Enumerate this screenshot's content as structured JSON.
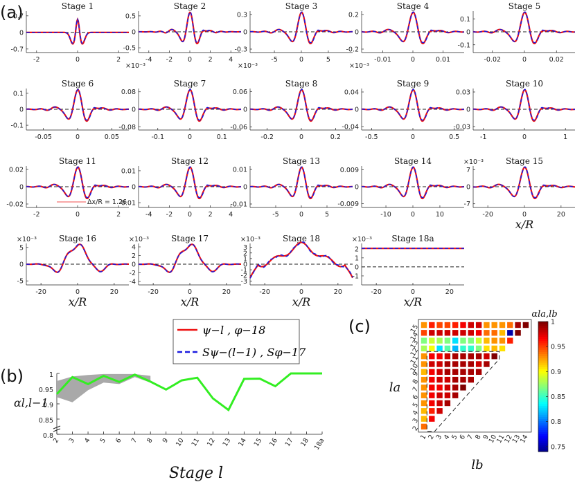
{
  "panel_labels": {
    "a": "(a)",
    "b": "(b)",
    "c": "(c)"
  },
  "colors": {
    "psi": "#ee1111",
    "spsi": "#1a1adf",
    "alpha_line": "#33ee22",
    "band": "#a9a9a9"
  },
  "legend": {
    "series1": "ψ−l , φ−18",
    "series2": "Sψ−(l−1) , Sφ−17"
  },
  "xlabel_a": "x/R",
  "annotation_stage11": "Δx/R = 1.26",
  "chart_data": [
    {
      "type": "line",
      "panel": "a",
      "series_names": [
        "ψ−l , φ−18",
        "Sψ−(l−1) , Sφ−17"
      ],
      "stages": [
        {
          "title": "Stage 1",
          "xlim": [
            -0.0025,
            0.0025
          ],
          "ylim": [
            -0.85,
            0.9
          ],
          "xticks": [
            -2,
            0,
            2
          ],
          "xtick_scale": "×10⁻³",
          "yticks": [
            "0.7",
            "0",
            "-0.7"
          ],
          "ytick_vals": [
            0.7,
            0,
            -0.7
          ],
          "shape": "spike"
        },
        {
          "title": "Stage 2",
          "xlim": [
            -0.005,
            0.005
          ],
          "ylim": [
            -0.65,
            0.65
          ],
          "xticks": [
            -4,
            -2,
            0,
            2,
            4
          ],
          "xtick_scale": "×10⁻³",
          "yticks": [
            "0.5",
            "0",
            "-0.5"
          ],
          "ytick_vals": [
            0.5,
            0,
            -0.5
          ],
          "shape": "wavelet",
          "k": 3.0
        },
        {
          "title": "Stage 3",
          "xlim": [
            -0.0095,
            0.0095
          ],
          "ylim": [
            -0.36,
            0.36
          ],
          "xticks": [
            -5,
            0,
            5
          ],
          "xtick_scale": "×10⁻³",
          "yticks": [
            "0.3",
            "0",
            "-0.3"
          ],
          "ytick_vals": [
            0.3,
            0,
            -0.3
          ],
          "shape": "wavelet",
          "k": 2.4
        },
        {
          "title": "Stage 4",
          "xlim": [
            -0.017,
            0.017
          ],
          "ylim": [
            -0.24,
            0.24
          ],
          "xticks": [
            -0.01,
            0,
            0.01
          ],
          "xtick_labels": [
            "-0.01",
            "0",
            "0.01"
          ],
          "yticks": [
            "0.2",
            "0",
            "-0.2"
          ],
          "ytick_vals": [
            0.2,
            0,
            -0.2
          ],
          "shape": "wavelet",
          "k": 2.2
        },
        {
          "title": "Stage 5",
          "xlim": [
            -0.032,
            0.032
          ],
          "ylim": [
            -0.16,
            0.16
          ],
          "xticks": [
            -0.02,
            0,
            0.02
          ],
          "xtick_labels": [
            "-0.02",
            "0",
            "0.02"
          ],
          "yticks": [
            "0.1",
            "0",
            "-0.1"
          ],
          "ytick_vals": [
            0.1,
            0,
            -0.1
          ],
          "shape": "wavelet",
          "k": 2.2
        },
        {
          "title": "Stage 6",
          "xlim": [
            -0.075,
            0.075
          ],
          "ylim": [
            -0.13,
            0.13
          ],
          "xticks": [
            -0.05,
            0,
            0.05
          ],
          "xtick_labels": [
            "-0.05",
            "0",
            "0.05"
          ],
          "yticks": [
            "0.1",
            "0",
            "-0.1"
          ],
          "ytick_vals": [
            0.1,
            0,
            -0.1
          ],
          "shape": "wavelet",
          "k": 2.4
        },
        {
          "title": "Stage 7",
          "xlim": [
            -0.16,
            0.16
          ],
          "ylim": [
            -0.095,
            0.095
          ],
          "xticks": [
            -0.1,
            0,
            0.1
          ],
          "xtick_labels": [
            "-0.1",
            "0",
            "0.1"
          ],
          "yticks": [
            "0.08",
            "0",
            "-0.08"
          ],
          "ytick_vals": [
            0.08,
            0,
            -0.08
          ],
          "shape": "wavelet",
          "k": 2.3
        },
        {
          "title": "Stage 8",
          "xlim": [
            -0.3,
            0.3
          ],
          "ylim": [
            -0.07,
            0.07
          ],
          "xticks": [
            -0.2,
            0,
            0.2
          ],
          "xtick_labels": [
            "-0.2",
            "0",
            "0.2"
          ],
          "yticks": [
            "0.06",
            "0",
            "-0.06"
          ],
          "ytick_vals": [
            0.06,
            0,
            -0.06
          ],
          "shape": "wavelet",
          "k": 2.3
        },
        {
          "title": "Stage 9",
          "xlim": [
            -0.62,
            0.62
          ],
          "ylim": [
            -0.048,
            0.048
          ],
          "xticks": [
            -0.5,
            0,
            0.5
          ],
          "xtick_labels": [
            "-0.5",
            "0",
            "0.5"
          ],
          "yticks": [
            "0.04",
            "0",
            "-0.04"
          ],
          "ytick_vals": [
            0.04,
            0,
            -0.04
          ],
          "shape": "wavelet",
          "k": 2.3
        },
        {
          "title": "Stage 10",
          "xlim": [
            -1.25,
            1.25
          ],
          "ylim": [
            -0.036,
            0.036
          ],
          "xticks": [
            -1,
            0,
            1
          ],
          "xtick_labels": [
            "-1",
            "0",
            "1"
          ],
          "yticks": [
            "0.03",
            "0",
            "-0.03"
          ],
          "ytick_vals": [
            0.03,
            0,
            -0.03
          ],
          "shape": "wavelet",
          "k": 2.3
        },
        {
          "title": "Stage 11",
          "xlim": [
            -2.5,
            2.5
          ],
          "ylim": [
            -0.024,
            0.024
          ],
          "xticks": [
            -2,
            0,
            2
          ],
          "xtick_labels": [
            "-2",
            "0",
            "2"
          ],
          "yticks": [
            "0.02",
            "0",
            "-0.02"
          ],
          "ytick_vals": [
            0.02,
            0,
            -0.02
          ],
          "shape": "wavelet",
          "k": 2.3
        },
        {
          "title": "Stage 12",
          "xlim": [
            -5,
            5
          ],
          "ylim": [
            -0.013,
            0.013
          ],
          "xticks": [
            -4,
            -2,
            0,
            2,
            4
          ],
          "xtick_labels": [
            "-4",
            "-2",
            "0",
            "2",
            "4"
          ],
          "yticks": [
            "0.01",
            "0",
            "-0.01"
          ],
          "ytick_vals": [
            0.01,
            0,
            -0.01
          ],
          "shape": "wavelet",
          "k": 2.3
        },
        {
          "title": "Stage 13",
          "xlim": [
            -10,
            10
          ],
          "ylim": [
            -0.012,
            0.012
          ],
          "xticks": [
            -5,
            0,
            5
          ],
          "xtick_labels": [
            "-5",
            "0",
            "5"
          ],
          "yticks": [
            "0.01",
            "0",
            "-0.01"
          ],
          "ytick_vals": [
            0.01,
            0,
            -0.01
          ],
          "shape": "wavelet",
          "k": 2.4
        },
        {
          "title": "Stage 14",
          "xlim": [
            -19,
            19
          ],
          "ylim": [
            -0.011,
            0.011
          ],
          "xticks": [
            -10,
            0,
            10
          ],
          "xtick_labels": [
            "-10",
            "0",
            "10"
          ],
          "yticks": [
            "0.009",
            "0",
            "-0.009"
          ],
          "ytick_vals": [
            0.009,
            0,
            -0.009
          ],
          "shape": "wavelet",
          "k": 2.3
        },
        {
          "title": "Stage 15",
          "xlim": [
            -28,
            28
          ],
          "ylim": [
            -0.0085,
            0.0085
          ],
          "xticks": [
            -20,
            0,
            20
          ],
          "xtick_labels": [
            "-20",
            "0",
            "20"
          ],
          "ytick_scale": "×10⁻³",
          "yticks": [
            "7",
            "0",
            "-7"
          ],
          "ytick_vals": [
            0.007,
            0,
            -0.007
          ],
          "shape": "wavelet",
          "k": 2.1
        },
        {
          "title": "Stage 16",
          "xlim": [
            -28,
            28
          ],
          "ylim": [
            -0.0062,
            0.0062
          ],
          "xticks": [
            -20,
            0,
            20
          ],
          "xtick_labels": [
            "-20",
            "0",
            "20"
          ],
          "ytick_scale": "×10⁻³",
          "yticks": [
            "5",
            "0",
            "-5"
          ],
          "ytick_vals": [
            0.005,
            0,
            -0.005
          ],
          "shape": "wide",
          "k": 1.3
        },
        {
          "title": "Stage 17",
          "xlim": [
            -28,
            28
          ],
          "ylim": [
            -0.0048,
            0.0048
          ],
          "xticks": [
            -20,
            0,
            20
          ],
          "xtick_labels": [
            "-20",
            "0",
            "20"
          ],
          "ytick_scale": "×10⁻³",
          "yticks": [
            "4",
            "2",
            "0",
            "-2",
            "-4"
          ],
          "ytick_vals": [
            0.004,
            0.002,
            0,
            -0.002,
            -0.004
          ],
          "shape": "wide",
          "k": 1.1
        },
        {
          "title": "Stage 18",
          "xlim": [
            -28,
            28
          ],
          "ylim": [
            -0.0037,
            0.0037
          ],
          "xticks": [
            -20,
            0,
            20
          ],
          "xtick_labels": [
            "-20",
            "0",
            "20"
          ],
          "ytick_scale": "×10⁻³",
          "yticks": [
            "3",
            "2",
            "1",
            "0",
            "-1",
            "-2",
            "-3"
          ],
          "ytick_vals": [
            0.003,
            0.002,
            0.001,
            0,
            -0.001,
            -0.002,
            -0.003
          ],
          "shape": "bump"
        },
        {
          "title": "Stage 18a",
          "xlim": [
            -28,
            28
          ],
          "ylim": [
            -0.002,
            0.0026
          ],
          "xticks": [
            -20,
            0,
            20
          ],
          "xtick_labels": [
            "-20",
            "0",
            "20"
          ],
          "ytick_scale": "×10⁻³",
          "yticks": [
            "2",
            "1",
            "0",
            "-1"
          ],
          "ytick_vals": [
            0.002,
            0.001,
            0,
            -0.001
          ],
          "shape": "flat",
          "level": 0.00205
        }
      ]
    },
    {
      "type": "line",
      "panel": "b",
      "xlabel": "Stage l",
      "ylabel": "αl,l−1",
      "categories": [
        "2",
        "3",
        "4",
        "5",
        "6",
        "7",
        "8",
        "9",
        "10",
        "11",
        "12",
        "13",
        "14",
        "15",
        "16",
        "17",
        "18",
        "18a"
      ],
      "values": [
        0.932,
        0.988,
        0.965,
        0.992,
        0.972,
        0.996,
        0.973,
        0.947,
        0.977,
        0.986,
        0.918,
        0.88,
        0.982,
        0.983,
        0.958,
        1.0,
        1.0,
        1.0
      ],
      "band_low": [
        0.922,
        0.905,
        0.945,
        0.97,
        0.965,
        0.988,
        0.97
      ],
      "band_high": [
        0.975,
        0.99,
        0.995,
        0.998,
        0.998,
        0.998,
        0.992
      ],
      "ylim": [
        0.8,
        1.0
      ],
      "yticks": [
        "1",
        "0.95",
        "0.9",
        "0.85",
        "0.8"
      ],
      "ytick_vals": [
        1.0,
        0.95,
        0.9,
        0.85,
        0.8
      ]
    },
    {
      "type": "heatmap",
      "panel": "c",
      "xlabel": "lb",
      "ylabel": "la",
      "colorbar_label": "αla,lb",
      "x_ticks": [
        "1",
        "2",
        "3",
        "4",
        "5",
        "6",
        "7",
        "8",
        "9",
        "10",
        "11",
        "12",
        "13",
        "14"
      ],
      "y_ticks": [
        "2",
        "3",
        "4",
        "5",
        "6",
        "7",
        "8",
        "9",
        "10",
        "11",
        "12",
        "13",
        "14",
        "15"
      ],
      "colorbar_ticks": [
        "1",
        "0.95",
        "0.9",
        "0.85",
        "0.8",
        "0.75"
      ],
      "colorbar_vals": [
        1.0,
        0.95,
        0.9,
        0.85,
        0.8,
        0.75
      ],
      "crange": [
        0.74,
        1.0
      ],
      "cells": [
        {
          "la": 15,
          "vals": [
            0.93,
            0.96,
            0.95,
            0.95,
            0.96,
            0.97,
            0.98,
            0.98,
            0.93,
            0.93,
            0.93,
            0.94,
            0.99,
            1.0
          ]
        },
        {
          "la": 14,
          "vals": [
            0.95,
            0.98,
            0.98,
            0.98,
            0.98,
            0.98,
            0.98,
            0.97,
            0.94,
            0.94,
            0.92,
            0.75,
            1.0
          ]
        },
        {
          "la": 13,
          "vals": [
            0.87,
            0.89,
            0.88,
            0.87,
            0.83,
            0.87,
            0.87,
            0.89,
            0.92,
            0.93,
            0.93,
            0.96
          ]
        },
        {
          "la": 12,
          "vals": [
            0.88,
            0.9,
            0.83,
            0.86,
            0.82,
            0.85,
            0.85,
            0.87,
            0.91,
            0.92,
            0.91
          ]
        },
        {
          "la": 11,
          "vals": [
            0.93,
            0.97,
            0.97,
            0.98,
            0.99,
            0.99,
            0.99,
            0.99,
            0.98,
            1.0
          ]
        },
        {
          "la": 10,
          "vals": [
            0.93,
            0.98,
            0.98,
            0.99,
            0.99,
            0.99,
            0.99,
            0.98,
            0.99
          ]
        },
        {
          "la": 9,
          "vals": [
            0.92,
            0.97,
            0.98,
            0.99,
            0.99,
            0.99,
            0.99,
            0.99
          ]
        },
        {
          "la": 8,
          "vals": [
            0.93,
            0.97,
            0.98,
            0.98,
            0.99,
            0.99,
            0.99
          ]
        },
        {
          "la": 7,
          "vals": [
            0.93,
            0.97,
            0.97,
            0.98,
            0.99,
            1.0
          ]
        },
        {
          "la": 6,
          "vals": [
            0.93,
            0.97,
            0.98,
            0.98,
            0.99
          ]
        },
        {
          "la": 5,
          "vals": [
            0.93,
            0.97,
            0.98,
            0.99
          ]
        },
        {
          "la": 4,
          "vals": [
            0.92,
            0.96,
            0.98
          ]
        },
        {
          "la": 3,
          "vals": [
            0.92,
            0.97
          ]
        },
        {
          "la": 2,
          "vals": [
            0.94
          ]
        }
      ]
    }
  ]
}
